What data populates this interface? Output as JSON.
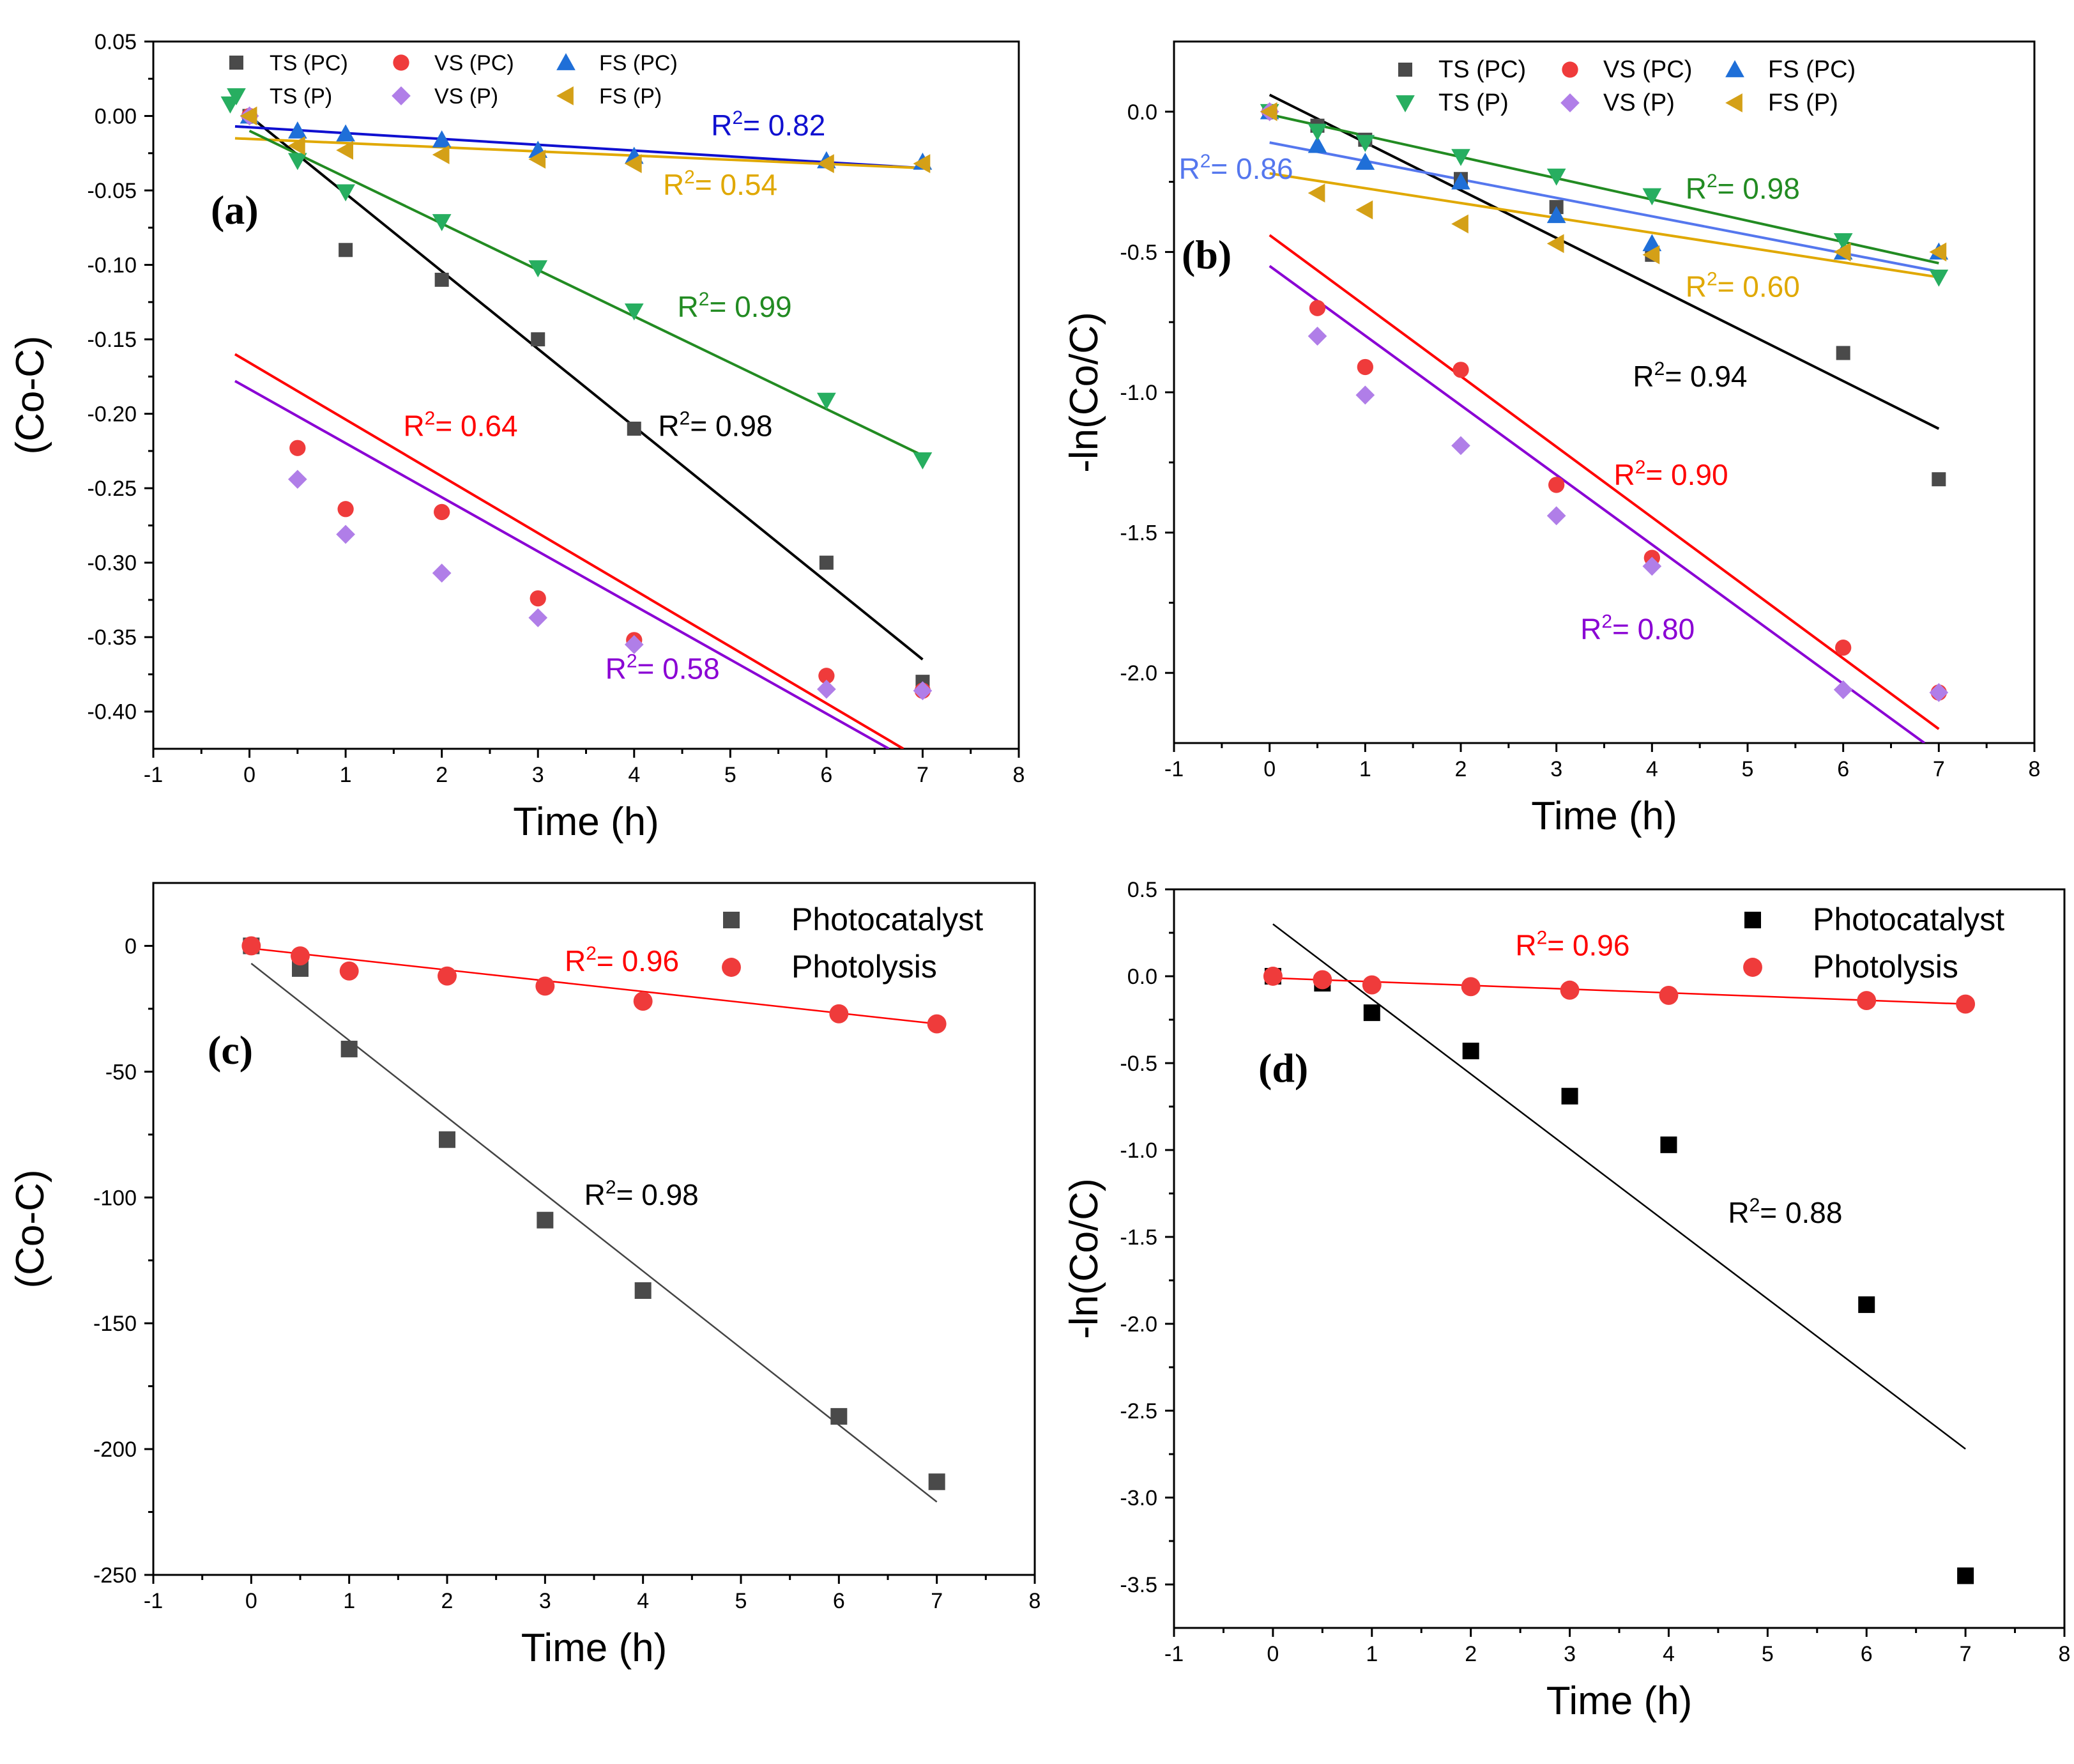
{
  "chart_data": [
    {
      "type": "scatter",
      "panel_label": "(a)",
      "xlabel": "Time (h)",
      "ylabel": "(Co-C)",
      "xlim": [
        -1,
        8
      ],
      "ylim": [
        -0.425,
        0.05
      ],
      "x_ticks": [
        "-1",
        "0",
        "1",
        "2",
        "3",
        "4",
        "5",
        "6",
        "7",
        "8"
      ],
      "y_ticks": [
        "0.05",
        "0.00",
        "-0.05",
        "-0.10",
        "-0.15",
        "-0.20",
        "-0.25",
        "-0.30",
        "-0.35",
        "-0.40"
      ],
      "legend_position": "top",
      "series": [
        {
          "name": "TS (PC)",
          "marker": "square",
          "color": "#4a4a4a",
          "x": [
            0,
            1,
            2,
            3,
            4,
            6,
            7
          ],
          "y": [
            0.0,
            -0.09,
            -0.11,
            -0.15,
            -0.21,
            -0.3,
            -0.38
          ]
        },
        {
          "name": "VS (PC)",
          "marker": "circle",
          "color": "#ef3b3b",
          "x": [
            0,
            0.5,
            1,
            2,
            3,
            4,
            6,
            7
          ],
          "y": [
            0.0,
            -0.223,
            -0.264,
            -0.266,
            -0.324,
            -0.352,
            -0.376,
            -0.386
          ]
        },
        {
          "name": "FS (PC)",
          "marker": "triangle-up",
          "color": "#1f6fd8",
          "x": [
            0,
            0.5,
            1,
            2,
            3,
            4,
            6,
            7
          ],
          "y": [
            0.0,
            -0.01,
            -0.012,
            -0.016,
            -0.023,
            -0.027,
            -0.03,
            -0.031
          ]
        },
        {
          "name": "TS (P)",
          "marker": "triangle-down",
          "color": "#27ae60",
          "x": [
            -0.2,
            0.5,
            1,
            2,
            3,
            4,
            6,
            7
          ],
          "y": [
            0.008,
            -0.03,
            -0.051,
            -0.071,
            -0.102,
            -0.131,
            -0.191,
            -0.231
          ]
        },
        {
          "name": "VS (P)",
          "marker": "diamond",
          "color": "#b07ee8",
          "x": [
            0,
            0.5,
            1,
            2,
            3,
            4,
            6,
            7
          ],
          "y": [
            0.0,
            -0.244,
            -0.281,
            -0.307,
            -0.337,
            -0.355,
            -0.385,
            -0.386
          ]
        },
        {
          "name": "FS (P)",
          "marker": "triangle-left",
          "color": "#d4a017",
          "x": [
            0,
            0.5,
            1,
            2,
            3,
            4,
            6,
            7
          ],
          "y": [
            0.0,
            -0.02,
            -0.023,
            -0.026,
            -0.029,
            -0.032,
            -0.032,
            -0.032
          ]
        }
      ],
      "fits": [
        {
          "color": "#000000",
          "x": [
            0,
            7
          ],
          "y": [
            0.0,
            -0.365
          ]
        },
        {
          "color": "#ff0000",
          "x": [
            -0.15,
            6.8
          ],
          "y": [
            -0.16,
            -0.425
          ]
        },
        {
          "color": "#8a00d4",
          "x": [
            -0.15,
            6.65
          ],
          "y": [
            -0.178,
            -0.425
          ]
        },
        {
          "color": "#1010d0",
          "x": [
            -0.15,
            7
          ],
          "y": [
            -0.007,
            -0.035
          ]
        },
        {
          "color": "#e0a800",
          "x": [
            -0.15,
            7
          ],
          "y": [
            -0.015,
            -0.035
          ]
        },
        {
          "color": "#228b22",
          "x": [
            0,
            7
          ],
          "y": [
            -0.01,
            -0.228
          ]
        }
      ],
      "annotations": [
        {
          "text": "R",
          "sup": "2",
          "rest": "= 0.82",
          "x": 4.8,
          "y": -0.013,
          "color": "#1010d0"
        },
        {
          "text": "R",
          "sup": "2",
          "rest": "= 0.54",
          "x": 4.3,
          "y": -0.053,
          "color": "#e0a800"
        },
        {
          "text": "R",
          "sup": "2",
          "rest": "= 0.99",
          "x": 4.45,
          "y": -0.135,
          "color": "#228b22"
        },
        {
          "text": "R",
          "sup": "2",
          "rest": "= 0.98",
          "x": 4.25,
          "y": -0.215,
          "color": "#000000"
        },
        {
          "text": "R",
          "sup": "2",
          "rest": "= 0.64",
          "x": 1.6,
          "y": -0.215,
          "color": "#ff0000"
        },
        {
          "text": "R",
          "sup": "2",
          "rest": "= 0.58",
          "x": 3.7,
          "y": -0.378,
          "color": "#8a00d4"
        }
      ]
    },
    {
      "type": "scatter",
      "panel_label": "(b)",
      "xlabel": "Time (h)",
      "ylabel": "-ln(Co/C)",
      "xlim": [
        -1,
        8
      ],
      "ylim": [
        -2.25,
        0.25
      ],
      "x_ticks": [
        "-1",
        "0",
        "1",
        "2",
        "3",
        "4",
        "5",
        "6",
        "7",
        "8"
      ],
      "y_ticks": [
        "0.0",
        "-0.5",
        "-1.0",
        "-1.5",
        "-2.0"
      ],
      "legend_position": "top",
      "series": [
        {
          "name": "TS (PC)",
          "marker": "square",
          "color": "#4a4a4a",
          "x": [
            0,
            0.5,
            1,
            2,
            3,
            4,
            6,
            7
          ],
          "y": [
            0.0,
            -0.05,
            -0.1,
            -0.24,
            -0.34,
            -0.51,
            -0.86,
            -1.31
          ]
        },
        {
          "name": "VS (PC)",
          "marker": "circle",
          "color": "#ef3b3b",
          "x": [
            0,
            0.5,
            1,
            2,
            3,
            4,
            6,
            7
          ],
          "y": [
            0.0,
            -0.7,
            -0.91,
            -0.92,
            -1.33,
            -1.59,
            -1.91,
            -2.07
          ]
        },
        {
          "name": "FS (PC)",
          "marker": "triangle-up",
          "color": "#1f6fd8",
          "x": [
            0,
            0.5,
            1,
            2,
            3,
            4,
            6,
            7
          ],
          "y": [
            0.0,
            -0.12,
            -0.18,
            -0.25,
            -0.37,
            -0.47,
            -0.5,
            -0.5
          ]
        },
        {
          "name": "TS (P)",
          "marker": "triangle-down",
          "color": "#27ae60",
          "x": [
            0,
            0.5,
            1,
            2,
            3,
            4,
            6,
            7
          ],
          "y": [
            0.0,
            -0.07,
            -0.11,
            -0.16,
            -0.23,
            -0.3,
            -0.46,
            -0.59
          ]
        },
        {
          "name": "VS (P)",
          "marker": "diamond",
          "color": "#b07ee8",
          "x": [
            0,
            0.5,
            1,
            2,
            3,
            4,
            6,
            7
          ],
          "y": [
            0.0,
            -0.8,
            -1.01,
            -1.19,
            -1.44,
            -1.62,
            -2.06,
            -2.07
          ]
        },
        {
          "name": "FS (P)",
          "marker": "triangle-left",
          "color": "#d4a017",
          "x": [
            0,
            0.5,
            1,
            2,
            3,
            4,
            6,
            7
          ],
          "y": [
            0.0,
            -0.29,
            -0.35,
            -0.4,
            -0.47,
            -0.51,
            -0.5,
            -0.5
          ]
        }
      ],
      "fits": [
        {
          "color": "#000000",
          "x": [
            0,
            7
          ],
          "y": [
            0.06,
            -1.13
          ]
        },
        {
          "color": "#ff0000",
          "x": [
            0,
            7
          ],
          "y": [
            -0.44,
            -2.2
          ]
        },
        {
          "color": "#8a00d4",
          "x": [
            0,
            6.85
          ],
          "y": [
            -0.55,
            -2.25
          ]
        },
        {
          "color": "#5577ee",
          "x": [
            0,
            7
          ],
          "y": [
            -0.11,
            -0.57
          ]
        },
        {
          "color": "#e0a800",
          "x": [
            0,
            7
          ],
          "y": [
            -0.22,
            -0.59
          ]
        },
        {
          "color": "#228b22",
          "x": [
            0,
            7
          ],
          "y": [
            -0.01,
            -0.54
          ]
        }
      ],
      "annotations": [
        {
          "text": "R",
          "sup": "2",
          "rest": "= 0.86",
          "x": -0.95,
          "y": -0.24,
          "color": "#5577ee"
        },
        {
          "text": "R",
          "sup": "2",
          "rest": "= 0.98",
          "x": 4.35,
          "y": -0.31,
          "color": "#228b22"
        },
        {
          "text": "R",
          "sup": "2",
          "rest": "= 0.60",
          "x": 4.35,
          "y": -0.66,
          "color": "#e0a800"
        },
        {
          "text": "R",
          "sup": "2",
          "rest": "= 0.94",
          "x": 3.8,
          "y": -0.98,
          "color": "#000000"
        },
        {
          "text": "R",
          "sup": "2",
          "rest": "= 0.90",
          "x": 3.6,
          "y": -1.33,
          "color": "#ff0000"
        },
        {
          "text": "R",
          "sup": "2",
          "rest": "= 0.80",
          "x": 3.25,
          "y": -1.88,
          "color": "#8a00d4"
        }
      ]
    },
    {
      "type": "scatter",
      "panel_label": "(c)",
      "xlabel": "Time (h)",
      "ylabel": "(Co-C)",
      "xlim": [
        -1,
        8
      ],
      "ylim": [
        -250,
        25
      ],
      "x_ticks": [
        "-1",
        "0",
        "1",
        "2",
        "3",
        "4",
        "5",
        "6",
        "7",
        "8"
      ],
      "y_ticks": [
        "0",
        "-50",
        "-100",
        "-150",
        "-200",
        "-250"
      ],
      "legend_position": "top-right",
      "series": [
        {
          "name": "Photocatalyst",
          "marker": "square",
          "color": "#4a4a4a",
          "x": [
            0,
            0.5,
            1,
            2,
            3,
            4,
            6,
            7
          ],
          "y": [
            0,
            -9,
            -41,
            -77,
            -109,
            -137,
            -187,
            -213
          ]
        },
        {
          "name": "Photolysis",
          "marker": "circle",
          "color": "#ef3b3b",
          "x": [
            0,
            0.5,
            1,
            2,
            3,
            4,
            6,
            7
          ],
          "y": [
            0,
            -4,
            -10,
            -12,
            -16,
            -22,
            -27,
            -31
          ]
        }
      ],
      "fits": [
        {
          "color": "#444444",
          "x": [
            0,
            7
          ],
          "y": [
            -7,
            -221
          ]
        },
        {
          "color": "#ff0000",
          "x": [
            0,
            7
          ],
          "y": [
            -1,
            -31
          ]
        }
      ],
      "annotations": [
        {
          "text": "R",
          "sup": "2",
          "rest": "= 0.96",
          "x": 3.2,
          "y": -10,
          "color": "#ff0000"
        },
        {
          "text": "R",
          "sup": "2",
          "rest": "= 0.98",
          "x": 3.4,
          "y": -103,
          "color": "#000000"
        }
      ]
    },
    {
      "type": "scatter",
      "panel_label": "(d)",
      "xlabel": "Time (h)",
      "ylabel": "-ln(Co/C)",
      "xlim": [
        -1,
        8
      ],
      "ylim": [
        -3.75,
        0.5
      ],
      "x_ticks": [
        "-1",
        "0",
        "1",
        "2",
        "3",
        "4",
        "5",
        "6",
        "7",
        "8"
      ],
      "y_ticks": [
        "0.5",
        "0.0",
        "-0.5",
        "-1.0",
        "-1.5",
        "-2.0",
        "-2.5",
        "-3.0",
        "-3.5"
      ],
      "legend_position": "top-right",
      "series": [
        {
          "name": "Photocatalyst",
          "marker": "square",
          "color": "#000000",
          "x": [
            0,
            0.5,
            1,
            2,
            3,
            4,
            6,
            7
          ],
          "y": [
            0.0,
            -0.04,
            -0.21,
            -0.43,
            -0.69,
            -0.97,
            -1.89,
            -3.45
          ]
        },
        {
          "name": "Photolysis",
          "marker": "circle",
          "color": "#ef3b3b",
          "x": [
            0,
            0.5,
            1,
            2,
            3,
            4,
            6,
            7
          ],
          "y": [
            0.0,
            -0.02,
            -0.05,
            -0.06,
            -0.08,
            -0.11,
            -0.14,
            -0.16
          ]
        }
      ],
      "fits": [
        {
          "color": "#000000",
          "x": [
            0,
            7
          ],
          "y": [
            0.3,
            -2.72
          ]
        },
        {
          "color": "#ff0000",
          "x": [
            0,
            7
          ],
          "y": [
            -0.01,
            -0.16
          ]
        }
      ],
      "annotations": [
        {
          "text": "R",
          "sup": "2",
          "rest": "= 0.96",
          "x": 2.45,
          "y": 0.12,
          "color": "#ff0000"
        },
        {
          "text": "R",
          "sup": "2",
          "rest": "= 0.88",
          "x": 4.6,
          "y": -1.42,
          "color": "#000000"
        }
      ]
    }
  ]
}
